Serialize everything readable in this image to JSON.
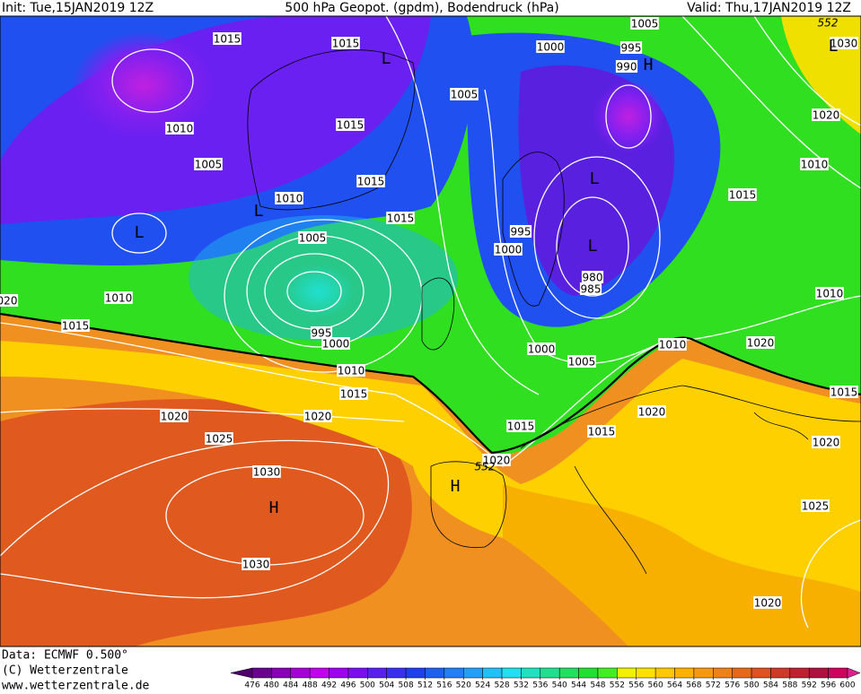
{
  "header": {
    "init": "Init: Tue,15JAN2019 12Z",
    "title": "500 hPa Geopot. (gpdm), Bodendruck (hPa)",
    "valid": "Valid: Thu,17JAN2019 12Z"
  },
  "map": {
    "isobar_labels": [
      "1015",
      "1015",
      "1005",
      "1000",
      "995",
      "990",
      "1005",
      "1015",
      "1010",
      "1005",
      "1015",
      "1010",
      "1015",
      "1005",
      "995",
      "1000",
      "980",
      "985",
      "1010",
      "1015",
      "995",
      "1000",
      "1000",
      "1005",
      "1010",
      "1020",
      "1010",
      "1015",
      "1020",
      "1020",
      "1015",
      "1015",
      "1020",
      "1025",
      "1030",
      "1020",
      "1030",
      "1020",
      "1025",
      "1020",
      "1020",
      "1010",
      "1015",
      "1010",
      "020",
      "1030",
      "1015"
    ],
    "geopotential_labels": [
      "552",
      "552"
    ],
    "pressure_centers": [
      "L",
      "L",
      "H",
      "L",
      "L",
      "L",
      "L",
      "H",
      "H"
    ]
  },
  "footer": {
    "data": "Data: ECMWF  0.500°",
    "copyright": "(C) Wetterzentrale",
    "url": "www.wetterzentrale.de"
  },
  "colorbar": {
    "ticks": [
      476,
      480,
      484,
      488,
      492,
      496,
      500,
      504,
      508,
      512,
      516,
      520,
      524,
      528,
      532,
      536,
      540,
      544,
      548,
      552,
      556,
      560,
      564,
      568,
      572,
      576,
      580,
      584,
      588,
      592,
      596,
      600
    ],
    "colors": [
      "#50006a",
      "#6a0090",
      "#8a00b8",
      "#a800d8",
      "#c400f0",
      "#a000f0",
      "#7a10f0",
      "#5a20f0",
      "#3a30f0",
      "#2040f0",
      "#2060f0",
      "#2080f8",
      "#20a0f8",
      "#20c0f8",
      "#20e0f0",
      "#20e0c0",
      "#20e090",
      "#20e060",
      "#20e030",
      "#40f020",
      "#f0f000",
      "#ffe000",
      "#ffc800",
      "#ffb000",
      "#f89810",
      "#f08018",
      "#e86818",
      "#e05020",
      "#d03828",
      "#c02030",
      "#b01040",
      "#d00060",
      "#e02090"
    ]
  }
}
